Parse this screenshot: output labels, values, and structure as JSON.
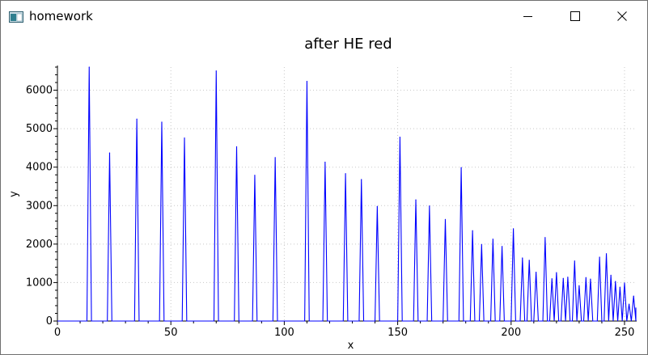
{
  "window": {
    "title": "homework",
    "icons": {
      "app": "app-window-icon",
      "minimize": "minimize-icon",
      "maximize": "maximize-icon",
      "close": "close-icon"
    }
  },
  "chart_data": {
    "type": "line",
    "title": "after HE red",
    "xlabel": "x",
    "ylabel": "y",
    "xlim": [
      0,
      255
    ],
    "ylim": [
      0,
      6600
    ],
    "xticks": [
      0,
      50,
      100,
      150,
      200,
      250
    ],
    "yticks": [
      0,
      1000,
      2000,
      3000,
      4000,
      5000,
      6000
    ],
    "grid": true,
    "series_color": "#0000ff",
    "peaks": [
      [
        14,
        6600
      ],
      [
        23,
        4370
      ],
      [
        35,
        5250
      ],
      [
        46,
        5170
      ],
      [
        56,
        4760
      ],
      [
        70,
        6500
      ],
      [
        79,
        4530
      ],
      [
        87,
        3790
      ],
      [
        96,
        4250
      ],
      [
        110,
        6230
      ],
      [
        118,
        4130
      ],
      [
        127,
        3830
      ],
      [
        134,
        3680
      ],
      [
        141,
        2980
      ],
      [
        151,
        4780
      ],
      [
        158,
        3150
      ],
      [
        164,
        2990
      ],
      [
        171,
        2640
      ],
      [
        178,
        3990
      ],
      [
        183,
        2350
      ],
      [
        187,
        1990
      ],
      [
        192,
        2130
      ],
      [
        196,
        1940
      ],
      [
        201,
        2400
      ],
      [
        205,
        1640
      ],
      [
        208,
        1580
      ],
      [
        211,
        1270
      ],
      [
        215,
        2170
      ],
      [
        218,
        1100
      ],
      [
        220,
        1260
      ],
      [
        223,
        1110
      ],
      [
        225,
        1140
      ],
      [
        228,
        1560
      ],
      [
        230,
        920
      ],
      [
        233,
        1130
      ],
      [
        235,
        1090
      ],
      [
        239,
        1660
      ],
      [
        242,
        1750
      ],
      [
        244,
        1190
      ],
      [
        246,
        1030
      ],
      [
        248,
        880
      ],
      [
        250,
        990
      ],
      [
        252,
        440
      ],
      [
        254,
        650
      ],
      [
        255,
        340
      ]
    ]
  }
}
